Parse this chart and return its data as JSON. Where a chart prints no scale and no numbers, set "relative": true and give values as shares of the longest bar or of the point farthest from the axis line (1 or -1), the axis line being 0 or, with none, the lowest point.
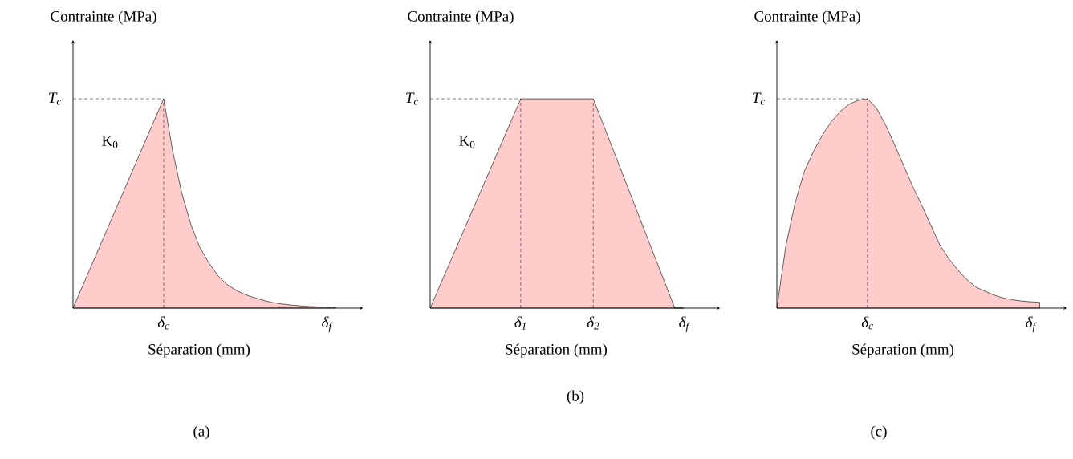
{
  "chart_data": [
    {
      "type": "area",
      "relative": true,
      "color": "#ffcccc",
      "xlabel": "Séparation (mm)",
      "ylabel": "Contrainte (MPa)",
      "categories": [
        null,
        null,
        null,
        null,
        null,
        null,
        null,
        null,
        null,
        null,
        "δ$_{c}$",
        null,
        null,
        null,
        null,
        null,
        null,
        null,
        null,
        null,
        null,
        null,
        null,
        null,
        null,
        null,
        null,
        null,
        "δ$_{f}$",
        null
      ],
      "values": [
        0,
        0.1,
        0.2,
        0.3,
        0.4,
        0.5,
        0.6,
        0.7,
        0.8,
        0.9,
        1,
        0.75,
        0.55,
        0.4,
        0.29,
        0.215,
        0.155,
        0.113,
        0.085,
        0.065,
        0.05,
        0.037,
        0.027,
        0.02,
        0.015,
        0.011,
        0.008,
        0.006,
        0.005,
        0.004
      ],
      "ref_lines": [
        {
          "axis": "y",
          "value": 1,
          "label": "T$_{c}$",
          "line_style": "dashed"
        },
        {
          "axis": "x",
          "value": "δ$_{c}$",
          "line_style": "dashed"
        }
      ],
      "annotations": [
        "K$_{0}$",
        "(a)"
      ]
    },
    {
      "type": "area",
      "relative": true,
      "color": "#ffcccc",
      "xlabel": "Séparation (mm)",
      "ylabel": "Contrainte (MPa)",
      "categories": [
        null,
        null,
        null,
        null,
        null,
        null,
        null,
        null,
        null,
        null,
        "δ$_{1}$",
        null,
        null,
        null,
        null,
        null,
        null,
        null,
        "δ$_{2}$",
        null,
        null,
        null,
        null,
        null,
        null,
        null,
        null,
        null,
        "δ$_{f}$"
      ],
      "values": [
        0,
        0.1,
        0.2,
        0.3,
        0.4,
        0.5,
        0.6,
        0.7,
        0.8,
        0.9,
        1,
        1,
        1,
        1,
        1,
        1,
        1,
        1,
        1,
        0.889,
        0.778,
        0.667,
        0.556,
        0.444,
        0.333,
        0.222,
        0.111,
        0,
        0
      ],
      "ref_lines": [
        {
          "axis": "y",
          "value": 1,
          "label": "T$_{c}$",
          "line_style": "dashed"
        },
        {
          "axis": "x",
          "value": "δ$_{1}$",
          "line_style": "dashed"
        },
        {
          "axis": "x",
          "value": "δ$_{2}$",
          "line_style": "dashed"
        }
      ],
      "annotations": [
        "K$_{0}$",
        "(b)"
      ]
    },
    {
      "type": "area",
      "relative": true,
      "color": "#ffcccc",
      "xlabel": "Séparation (mm)",
      "ylabel": "Contrainte (MPa)",
      "categories": [
        null,
        null,
        null,
        null,
        null,
        null,
        null,
        null,
        null,
        null,
        "δ$_{c}$",
        null,
        null,
        null,
        null,
        null,
        null,
        null,
        null,
        null,
        null,
        null,
        null,
        null,
        null,
        null,
        null,
        null,
        "δ$_{f}$",
        null
      ],
      "values": [
        0,
        0.3,
        0.5,
        0.65,
        0.745,
        0.825,
        0.89,
        0.94,
        0.975,
        0.993,
        1,
        0.955,
        0.875,
        0.78,
        0.68,
        0.58,
        0.49,
        0.395,
        0.3,
        0.235,
        0.18,
        0.135,
        0.1,
        0.08,
        0.062,
        0.048,
        0.04,
        0.034,
        0.03,
        0.028
      ],
      "ref_lines": [
        {
          "axis": "y",
          "value": 1,
          "label": "T$_{c}$",
          "line_style": "dashed"
        },
        {
          "axis": "x",
          "value": "δ$_{c}$",
          "line_style": "dashed"
        }
      ],
      "annotations": [
        "(c)"
      ]
    }
  ]
}
